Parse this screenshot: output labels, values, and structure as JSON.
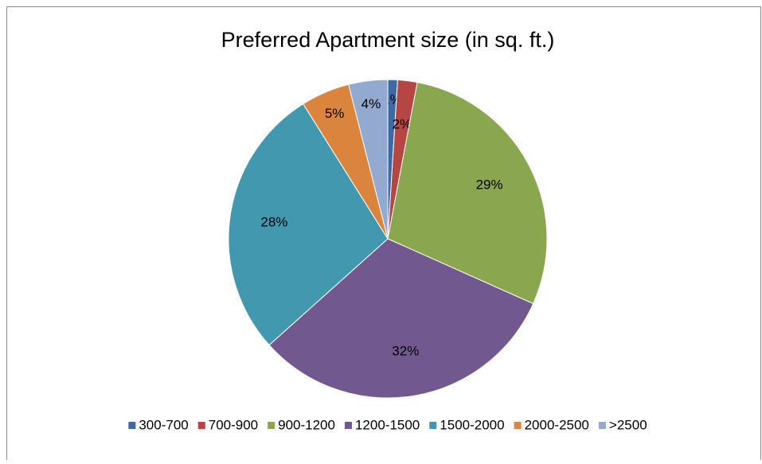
{
  "chart_data": {
    "type": "pie",
    "title": "Preferred Apartment size (in sq. ft.)",
    "categories": [
      "300-700",
      "700-900",
      "900-1200",
      "1200-1500",
      "1500-2000",
      "2000-2500",
      ">2500"
    ],
    "values": [
      1,
      2,
      29,
      32,
      28,
      5,
      4
    ],
    "value_labels": [
      "1%",
      "2%",
      "29%",
      "32%",
      "28%",
      "5%",
      "4%"
    ],
    "colors": [
      "#3d6aa4",
      "#b54643",
      "#8aa64e",
      "#71588f",
      "#4198af",
      "#db843d",
      "#93a9cf"
    ],
    "legend": "bottom"
  }
}
